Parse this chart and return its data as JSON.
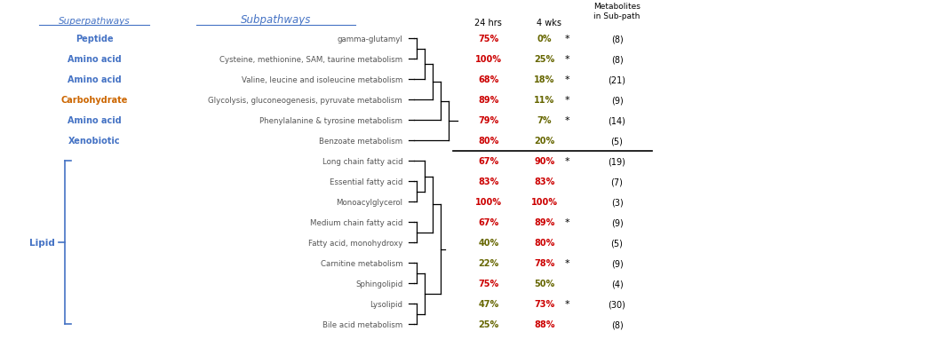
{
  "superpathways": [
    "Peptide",
    "Amino acid",
    "Amino acid",
    "Carbohydrate",
    "Amino acid",
    "Xenobiotic"
  ],
  "subpathways": [
    "gamma-glutamyl",
    "Cysteine, methionine, SAM, taurine metabolism",
    "Valine, leucine and isoleucine metabolism",
    "Glycolysis, gluconeogenesis, pyruvate metabolism",
    "Phenylalanine & tyrosine metabolism",
    "Benzoate metabolism",
    "Long chain fatty acid",
    "Essential fatty acid",
    "Monoacylglycerol",
    "Medium chain fatty acid",
    "Fatty acid, monohydroxy",
    "Carnitine metabolism",
    "Sphingolipid",
    "Lysolipid",
    "Bile acid metabolism"
  ],
  "pct_24h": [
    "75%",
    "100%",
    "68%",
    "89%",
    "79%",
    "80%",
    "67%",
    "83%",
    "100%",
    "67%",
    "40%",
    "22%",
    "75%",
    "47%",
    "25%"
  ],
  "pct_4wk": [
    "0%",
    "25%",
    "18%",
    "11%",
    "7%",
    "20%",
    "90%",
    "83%",
    "100%",
    "89%",
    "80%",
    "78%",
    "50%",
    "73%",
    "88%"
  ],
  "asterisk": [
    true,
    true,
    true,
    true,
    true,
    false,
    true,
    false,
    false,
    true,
    false,
    true,
    false,
    true,
    false
  ],
  "metabolites": [
    "(8)",
    "(8)",
    "(21)",
    "(9)",
    "(14)",
    "(5)",
    "(19)",
    "(7)",
    "(3)",
    "(9)",
    "(5)",
    "(9)",
    "(4)",
    "(30)",
    "(8)"
  ],
  "color_24h": [
    "#cc0000",
    "#cc0000",
    "#cc0000",
    "#cc0000",
    "#cc0000",
    "#cc0000",
    "#cc0000",
    "#cc0000",
    "#cc0000",
    "#cc0000",
    "#666600",
    "#666600",
    "#cc0000",
    "#666600",
    "#666600"
  ],
  "color_4wk": [
    "#666600",
    "#666600",
    "#666600",
    "#666600",
    "#666600",
    "#666600",
    "#cc0000",
    "#cc0000",
    "#cc0000",
    "#cc0000",
    "#cc0000",
    "#cc0000",
    "#666600",
    "#cc0000",
    "#cc0000"
  ],
  "super_colors": [
    "#4472c4",
    "#4472c4",
    "#4472c4",
    "#cc6600",
    "#4472c4",
    "#4472c4"
  ],
  "header_color": "#4472c4",
  "subpath_color": "#555555",
  "lipid_color": "#4472c4",
  "fig_width": 10.48,
  "fig_height": 4.1,
  "dpi": 100
}
